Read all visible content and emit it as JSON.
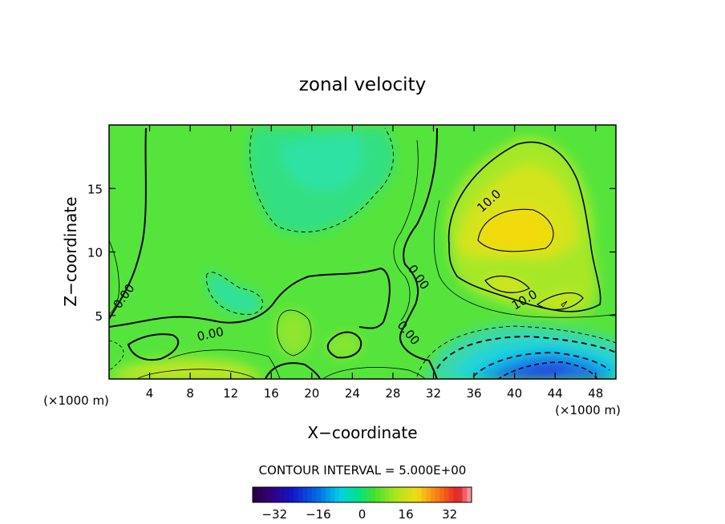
{
  "chart_data": {
    "type": "heatmap",
    "title": "zonal velocity",
    "xlabel": "X−coordinate",
    "ylabel": "Z−coordinate",
    "x_unit_left": "(×1000 m)",
    "x_unit_right": "(×1000 m)",
    "xlim": [
      0,
      50
    ],
    "ylim": [
      0,
      20
    ],
    "x_ticks": [
      4,
      8,
      12,
      16,
      20,
      24,
      28,
      32,
      36,
      40,
      44,
      48
    ],
    "x_tick_labels": [
      "4",
      "8",
      "12",
      "16",
      "20",
      "24",
      "28",
      "32",
      "36",
      "40",
      "44",
      "48"
    ],
    "y_ticks": [
      5,
      10,
      15
    ],
    "y_tick_labels": [
      "5",
      "10",
      "15"
    ],
    "contour_interval_text": "CONTOUR INTERVAL = 5.000E+00",
    "contour_labels": [
      {
        "text": "0.00",
        "x": 1.5,
        "y": 6.5,
        "angle": -55
      },
      {
        "text": "0.00",
        "x": 10,
        "y": 3.5,
        "angle": -12
      },
      {
        "text": "0.00",
        "x": 30.5,
        "y": 8,
        "angle": 55
      },
      {
        "text": "0.00",
        "x": 29.5,
        "y": 3.6,
        "angle": 50
      },
      {
        "text": "10.0",
        "x": 37.5,
        "y": 14,
        "angle": -42
      },
      {
        "text": "10.0",
        "x": 41,
        "y": 6.2,
        "angle": -30
      }
    ],
    "features": [
      {
        "kind": "max",
        "x": 40,
        "y": 11.5,
        "value": 15
      },
      {
        "kind": "min",
        "x": 42.5,
        "y": 1.0,
        "value": -20
      },
      {
        "kind": "weak-negative",
        "x": 22,
        "y": 14,
        "value": -3
      },
      {
        "kind": "weak-negative",
        "x": 11.5,
        "y": 6.0,
        "value": -3
      }
    ],
    "colorbar": {
      "min": -40,
      "max": 40,
      "ticks": [
        -32,
        -16,
        0,
        16,
        32
      ],
      "tick_labels": [
        "−32",
        "−16",
        "0",
        "16",
        "32"
      ]
    },
    "grid": false
  }
}
